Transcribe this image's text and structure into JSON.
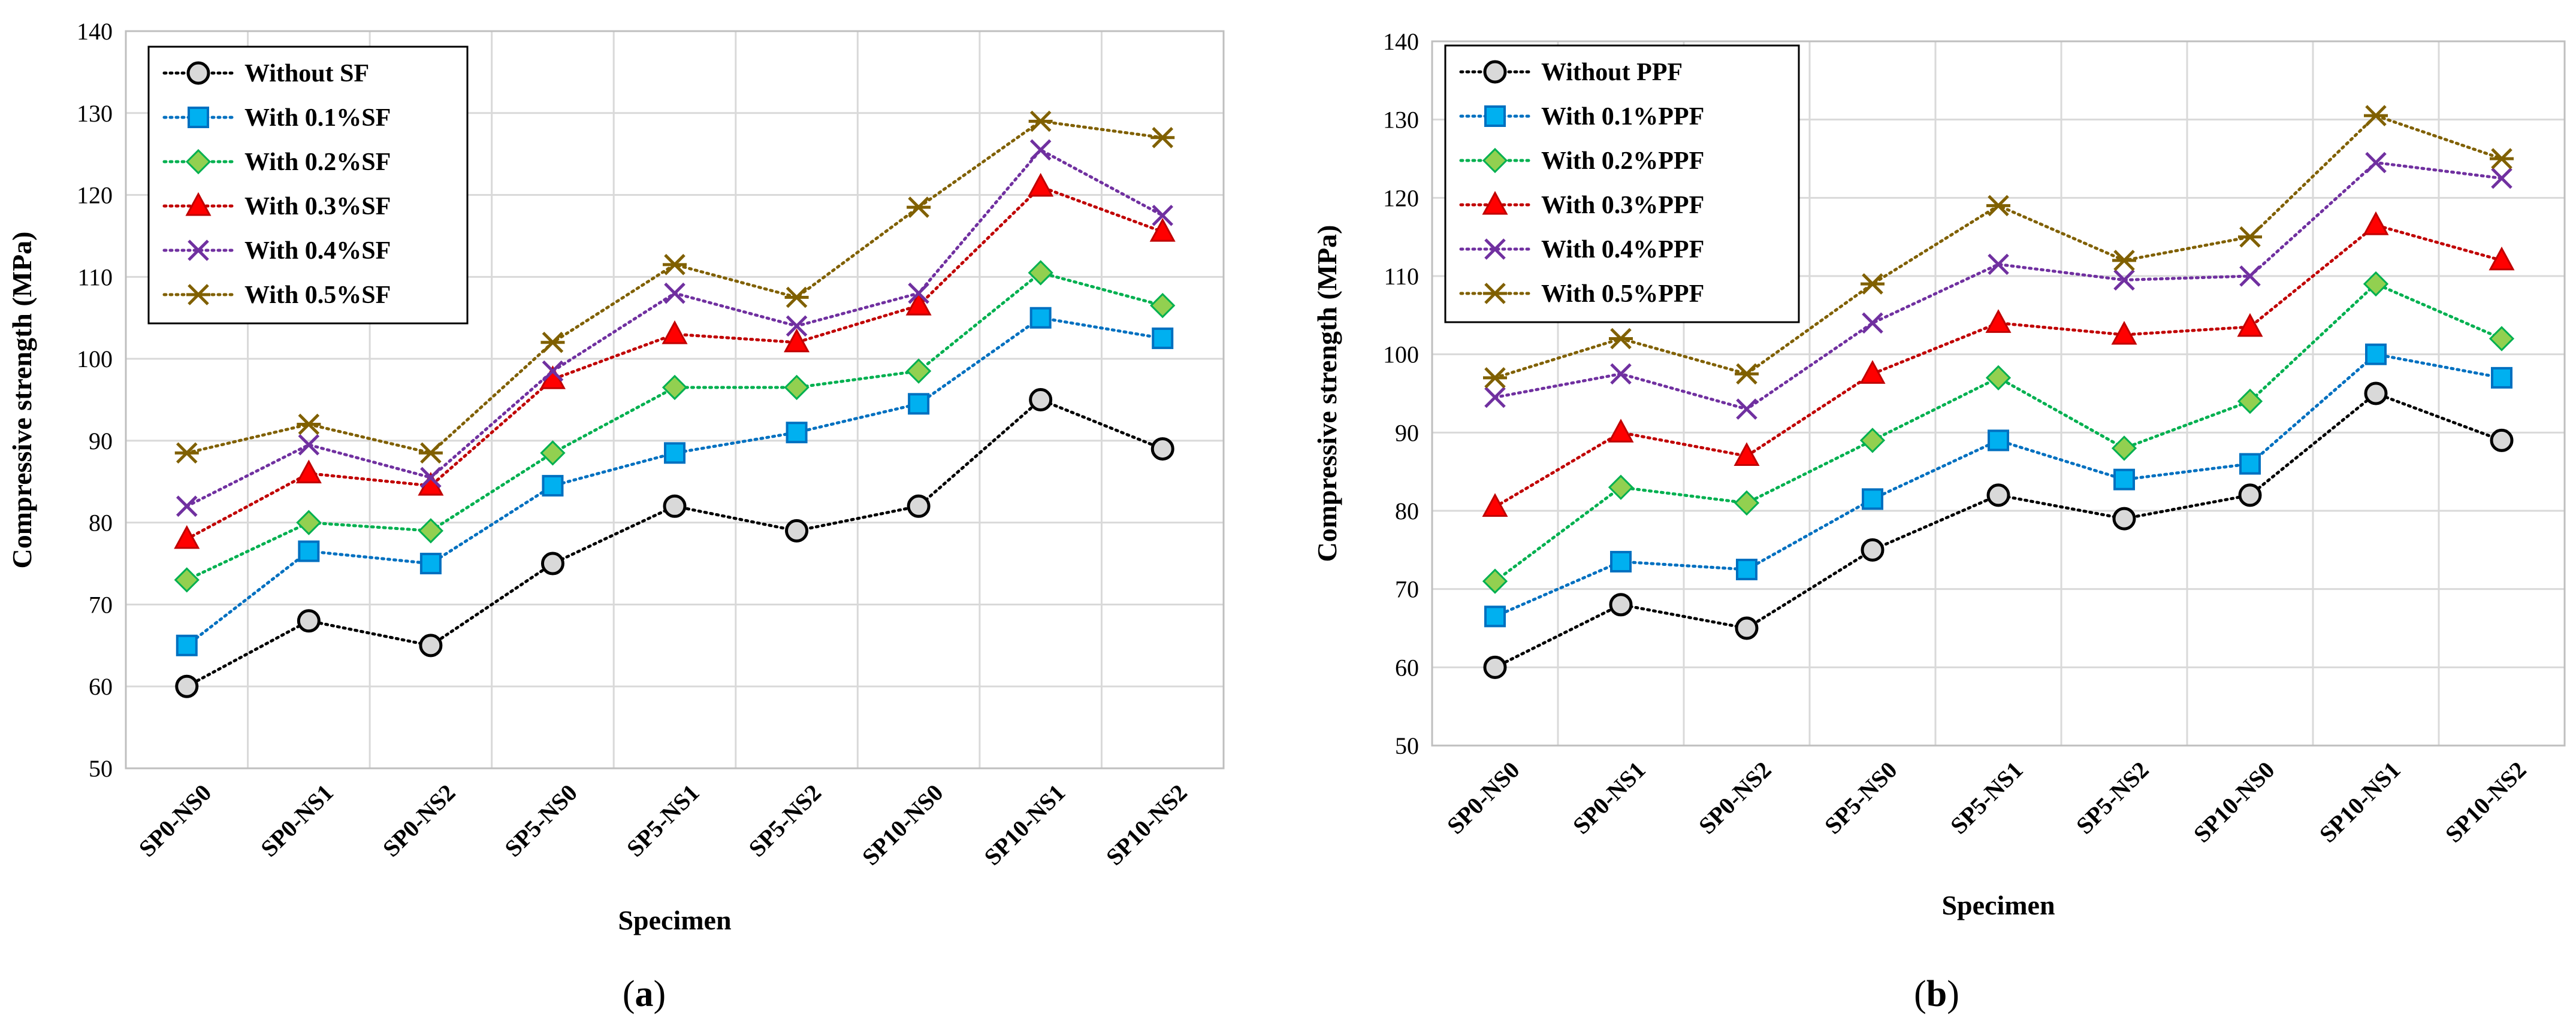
{
  "chart_data": [
    {
      "type": "line",
      "panel_label": "a",
      "ylabel": "Compressive strength (MPa)",
      "xlabel": "Specimen",
      "ylim": [
        50,
        140
      ],
      "yticks": [
        "50",
        "60",
        "70",
        "80",
        "90",
        "100",
        "110",
        "120",
        "130",
        "140"
      ],
      "categories": [
        "SP0-NS0",
        "SP0-NS1",
        "SP0-NS2",
        "SP5-NS0",
        "SP5-NS1",
        "SP5-NS2",
        "SP10-NS0",
        "SP10-NS1",
        "SP10-NS2"
      ],
      "legend_position": "top-left",
      "grid": true,
      "series": [
        {
          "name": "Without SF",
          "color": "#000000",
          "marker": "circle",
          "fill": "#d9d9d9",
          "values": [
            60,
            68,
            65,
            75,
            82,
            79,
            82,
            95,
            89
          ]
        },
        {
          "name": "With 0.1%SF",
          "color": "#0070c0",
          "marker": "square",
          "fill": "#00b0f0",
          "values": [
            65,
            76.5,
            75,
            84.5,
            88.5,
            91,
            94.5,
            105,
            102.5
          ]
        },
        {
          "name": "With 0.2%SF",
          "color": "#00b050",
          "marker": "diamond",
          "fill": "#92d050",
          "values": [
            73,
            80,
            79,
            88.5,
            96.5,
            96.5,
            98.5,
            110.5,
            106.5
          ]
        },
        {
          "name": "With 0.3%SF",
          "color": "#c00000",
          "marker": "triangle",
          "fill": "#ff0000",
          "values": [
            78,
            86,
            84.5,
            97.5,
            103,
            102,
            106.5,
            121,
            115.5
          ]
        },
        {
          "name": "With 0.4%SF",
          "color": "#7030a0",
          "marker": "x",
          "fill": "#7030a0",
          "values": [
            82,
            89.5,
            85.5,
            98.5,
            108,
            104,
            108,
            125.5,
            117.5
          ]
        },
        {
          "name": "With 0.5%SF",
          "color": "#806000",
          "marker": "star",
          "fill": "#806000",
          "values": [
            88.5,
            92,
            88.5,
            102,
            111.5,
            107.5,
            118.5,
            129,
            127
          ]
        }
      ]
    },
    {
      "type": "line",
      "panel_label": "b",
      "ylabel": "Compressive strength (MPa)",
      "xlabel": "Specimen",
      "ylim": [
        50,
        140
      ],
      "yticks": [
        "50",
        "60",
        "70",
        "80",
        "90",
        "100",
        "110",
        "120",
        "130",
        "140"
      ],
      "categories": [
        "SP0-NS0",
        "SP0-NS1",
        "SP0-NS2",
        "SP5-NS0",
        "SP5-NS1",
        "SP5-NS2",
        "SP10-NS0",
        "SP10-NS1",
        "SP10-NS2"
      ],
      "legend_position": "top-left",
      "grid": true,
      "series": [
        {
          "name": "Without PPF",
          "color": "#000000",
          "marker": "circle",
          "fill": "#d9d9d9",
          "values": [
            60,
            68,
            65,
            75,
            82,
            79,
            82,
            95,
            89
          ]
        },
        {
          "name": "With 0.1%PPF",
          "color": "#0070c0",
          "marker": "square",
          "fill": "#00b0f0",
          "values": [
            66.5,
            73.5,
            72.5,
            81.5,
            89,
            84,
            86,
            100,
            97
          ]
        },
        {
          "name": "With 0.2%PPF",
          "color": "#00b050",
          "marker": "diamond",
          "fill": "#92d050",
          "values": [
            71,
            83,
            81,
            89,
            97,
            88,
            94,
            109,
            102
          ]
        },
        {
          "name": "With 0.3%PPF",
          "color": "#c00000",
          "marker": "triangle",
          "fill": "#ff0000",
          "values": [
            80.5,
            90,
            87,
            97.5,
            104,
            102.5,
            103.5,
            116.5,
            112
          ]
        },
        {
          "name": "With 0.4%PPF",
          "color": "#7030a0",
          "marker": "x",
          "fill": "#7030a0",
          "values": [
            94.5,
            97.5,
            93,
            104,
            111.5,
            109.5,
            110,
            124.5,
            122.5
          ]
        },
        {
          "name": "With 0.5%PPF",
          "color": "#806000",
          "marker": "star",
          "fill": "#806000",
          "values": [
            97,
            102,
            97.5,
            109,
            119,
            112,
            115,
            130.5,
            125
          ]
        }
      ]
    }
  ]
}
